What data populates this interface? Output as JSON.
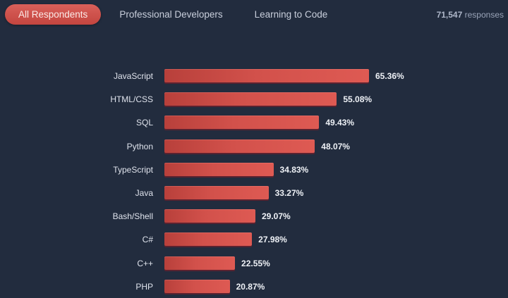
{
  "tabs": [
    {
      "label": "All Respondents",
      "active": true
    },
    {
      "label": "Professional Developers",
      "active": false
    },
    {
      "label": "Learning to Code",
      "active": false
    }
  ],
  "responses": {
    "count": "71,547",
    "label": "responses"
  },
  "colors": {
    "background": "#222c3e",
    "bar": "#d2514b",
    "active_tab": "#cf5550"
  },
  "chart_data": {
    "type": "bar",
    "orientation": "horizontal",
    "title": "",
    "xlabel": "",
    "ylabel": "",
    "categories": [
      "JavaScript",
      "HTML/CSS",
      "SQL",
      "Python",
      "TypeScript",
      "Java",
      "Bash/Shell",
      "C#",
      "C++",
      "PHP"
    ],
    "values": [
      65.36,
      55.08,
      49.43,
      48.07,
      34.83,
      33.27,
      29.07,
      27.98,
      22.55,
      20.87
    ],
    "value_labels": [
      "65.36%",
      "55.08%",
      "49.43%",
      "48.07%",
      "34.83%",
      "33.27%",
      "29.07%",
      "27.98%",
      "22.55%",
      "20.87%"
    ],
    "unit": "%",
    "grid": false,
    "legend": null
  }
}
